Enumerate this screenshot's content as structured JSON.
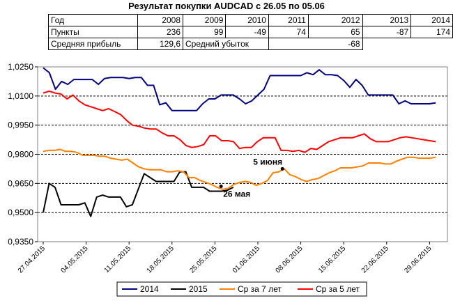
{
  "title": "Результат покупки AUDCAD с 26.05 по 05.06",
  "table": {
    "year_label": "Год",
    "years": [
      "2008",
      "2009",
      "2010",
      "2011",
      "2012",
      "2013",
      "2014"
    ],
    "points_label": "Пункты",
    "points": [
      "236",
      "99",
      "-49",
      "74",
      "65",
      "-87",
      "174"
    ],
    "avg_profit_label": "Средняя прибыль",
    "avg_profit": "129,6",
    "avg_loss_label": "Средний убыток",
    "avg_loss": "-68"
  },
  "chart_data": {
    "type": "line",
    "y_ticks": [
      "1,0250",
      "1,0100",
      "0,9950",
      "0,9800",
      "0,9650",
      "0,9500",
      "0,9350"
    ],
    "ylim": [
      0.935,
      1.025
    ],
    "x_ticks": [
      "27.04.2015",
      "04.05.2015",
      "11.05.2015",
      "18.05.2015",
      "25.05.2015",
      "01.06.2015",
      "08.06.2015",
      "15.06.2015",
      "22.06.2015",
      "29.06.2015"
    ],
    "grid": "horizontal-dashed",
    "legend_position": "bottom",
    "series": [
      {
        "name": "2014",
        "color": "#000080",
        "values": [
          1.0245,
          1.022,
          1.0135,
          1.0175,
          1.016,
          1.0185,
          1.0185,
          1.0185,
          1.0185,
          1.016,
          1.019,
          1.0195,
          1.0195,
          1.0195,
          1.019,
          1.0195,
          1.0195,
          1.0155,
          1.0155,
          1.0055,
          1.0065,
          1.0025,
          1.0025,
          1.0025,
          1.0025,
          1.0025,
          1.006,
          1.0085,
          1.0085,
          1.0105,
          1.0105,
          1.0105,
          1.0085,
          1.006,
          1.0075,
          1.0105,
          1.0135,
          1.0205,
          1.0205,
          1.0205,
          1.0205,
          1.0205,
          1.0205,
          1.022,
          1.021,
          1.0235,
          1.021,
          1.021,
          1.0205,
          1.018,
          1.0145,
          1.0185,
          1.0155,
          1.0105,
          1.0105,
          1.0105,
          1.0105,
          1.0105,
          1.006,
          1.0075,
          1.006,
          1.006,
          1.006,
          1.006,
          1.0065
        ]
      },
      {
        "name": "2015",
        "color": "#000000",
        "values": [
          0.95,
          0.965,
          0.963,
          0.954,
          0.954,
          0.954,
          0.954,
          0.955,
          0.948,
          0.958,
          0.959,
          0.958,
          0.958,
          0.958,
          0.953,
          0.954,
          0.962,
          0.97,
          0.968,
          0.966,
          0.966,
          0.966,
          0.966,
          0.971,
          0.971,
          0.963,
          0.963,
          0.963,
          0.961,
          0.961,
          0.961,
          0.9615,
          0.963
        ]
      },
      {
        "name": "Ср за 7 лет",
        "color": "#FF8000",
        "values": [
          0.9815,
          0.982,
          0.982,
          0.9825,
          0.9815,
          0.9815,
          0.981,
          0.9795,
          0.9795,
          0.9795,
          0.979,
          0.979,
          0.978,
          0.9775,
          0.977,
          0.9775,
          0.9755,
          0.9735,
          0.9725,
          0.972,
          0.972,
          0.972,
          0.971,
          0.971,
          0.9715,
          0.971,
          0.968,
          0.968,
          0.9665,
          0.9655,
          0.9645,
          0.963,
          0.962,
          0.9625,
          0.9645,
          0.9655,
          0.966,
          0.9655,
          0.964,
          0.965,
          0.9665,
          0.9705,
          0.971,
          0.9725,
          0.9695,
          0.9685,
          0.967,
          0.966,
          0.967,
          0.9675,
          0.969,
          0.9705,
          0.9715,
          0.973,
          0.973,
          0.973,
          0.9735,
          0.974,
          0.9755,
          0.9755,
          0.9755,
          0.975,
          0.975,
          0.9765,
          0.9775,
          0.9785,
          0.9785,
          0.978,
          0.978,
          0.978,
          0.9785
        ]
      },
      {
        "name": "Ср за 5 лет",
        "color": "#FF0000",
        "values": [
          1.0115,
          1.0125,
          1.0115,
          1.011,
          1.0085,
          1.0105,
          1.0075,
          1.0055,
          1.0045,
          1.0035,
          1.0025,
          1.0035,
          1.002,
          1.0005,
          0.9975,
          0.995,
          0.9945,
          0.9935,
          0.993,
          0.993,
          0.991,
          0.9895,
          0.9895,
          0.9875,
          0.9845,
          0.9835,
          0.984,
          0.985,
          0.9895,
          0.9895,
          0.987,
          0.987,
          0.9865,
          0.983,
          0.9835,
          0.9835,
          0.9865,
          0.9885,
          0.9885,
          0.9885,
          0.982,
          0.982,
          0.9815,
          0.982,
          0.981,
          0.983,
          0.9825,
          0.9845,
          0.9865,
          0.9875,
          0.9885,
          0.9885,
          0.9885,
          0.9895,
          0.9905,
          0.988,
          0.9865,
          0.9865,
          0.9865,
          0.9875,
          0.9885,
          0.989,
          0.9885,
          0.988,
          0.9875,
          0.987,
          0.9865
        ]
      }
    ],
    "annotations": [
      {
        "text": "26 мая",
        "x_date": "26.05.2015",
        "y": 0.9635
      },
      {
        "text": "5 июня",
        "x_date": "05.06.2015",
        "y": 0.9725
      }
    ]
  }
}
